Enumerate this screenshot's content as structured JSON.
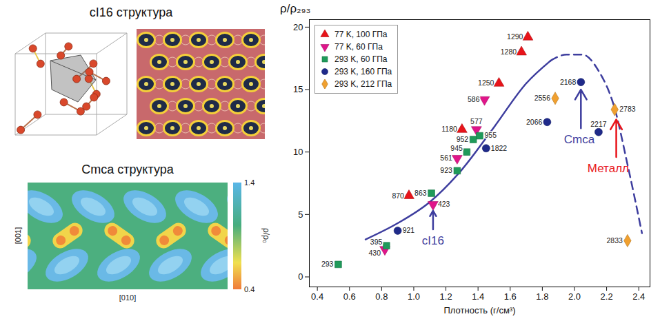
{
  "structures": [
    {
      "title": "cI16 структура"
    },
    {
      "title": "Cmca структура",
      "xlabel": "[010]",
      "ylabel": "[001]",
      "colorbar": {
        "label": "ρ/ρ₀",
        "range": [
          0.4,
          1.4
        ],
        "ticks": [
          1.4,
          0.4
        ]
      }
    }
  ],
  "chart_data": {
    "type": "scatter",
    "xlabel": "Плотность (г/см³)",
    "ylabel": "ρ/ρ₂₉₃",
    "xlim": [
      0.35,
      2.47
    ],
    "xticks": [
      0.4,
      0.6,
      0.8,
      {
        "value": 1,
        "label": "1.0"
      },
      1.2,
      1.4,
      1.6,
      1.8,
      {
        "value": 2,
        "label": "2.0"
      },
      2.2,
      2.4
    ],
    "ylim": [
      -0.8,
      20.6
    ],
    "yticks": [
      0,
      5,
      10,
      15,
      20
    ],
    "legend": "top-left",
    "series": [
      {
        "name": "77 K, 100 ГПа",
        "color": "#e8141a",
        "marker": "triangle",
        "x": [
          0.97,
          1.3,
          1.53,
          1.67,
          1.71
        ],
        "values": [
          6.5,
          11.8,
          15.5,
          18.0,
          19.2
        ],
        "point_labels": [
          870,
          1180,
          1250,
          1280,
          1290
        ]
      },
      {
        "name": "77 K, 60 ГПа",
        "color": "#e0158a",
        "marker": "triangle-down",
        "x": [
          0.82,
          1.12,
          1.27,
          1.39,
          1.44
        ],
        "values": [
          2.2,
          5.8,
          9.5,
          11.8,
          14.2
        ],
        "point_labels": [
          430,
          423,
          561,
          577,
          586
        ]
      },
      {
        "name": "293 K, 60 ГПа",
        "color": "#1f9a5a",
        "marker": "square",
        "x": [
          0.53,
          0.83,
          1.11,
          1.27,
          1.33,
          1.37,
          1.41
        ],
        "values": [
          1.0,
          2.5,
          6.7,
          8.5,
          10.0,
          11.0,
          11.3
        ],
        "point_labels": [
          293,
          395,
          863,
          923,
          945,
          952,
          955
        ]
      },
      {
        "name": "293 K, 160 ГПа",
        "color": "#1f2a8a",
        "marker": "circle",
        "x": [
          0.9,
          1.45,
          1.83,
          2.04,
          2.15
        ],
        "values": [
          3.7,
          10.3,
          12.4,
          15.6,
          11.6
        ],
        "point_labels": [
          921,
          1822,
          2066,
          2168,
          2217
        ]
      },
      {
        "name": "293 K, 212 ГПа",
        "color": "#f0a030",
        "marker": "diamond",
        "x": [
          1.88,
          2.25,
          2.33
        ],
        "values": [
          14.3,
          13.4,
          2.9
        ],
        "point_labels": [
          2556,
          2783,
          2833
        ]
      }
    ],
    "curves": [
      {
        "type": "line",
        "line_style": "solid",
        "color": "#3d3d9e",
        "x": [
          0.7,
          0.9,
          1.1,
          1.3,
          1.5,
          1.7,
          1.85
        ],
        "values": [
          3.0,
          4.3,
          6.0,
          8.6,
          12.0,
          15.5,
          17.3
        ]
      },
      {
        "type": "line",
        "line_style": "dashed",
        "color": "#3d3d9e",
        "x": [
          1.85,
          1.95,
          2.05,
          2.15,
          2.25,
          2.33,
          2.38,
          2.42
        ],
        "values": [
          17.3,
          17.8,
          17.8,
          16.5,
          13.5,
          9.0,
          6.0,
          3.5
        ]
      }
    ],
    "annotations": [
      {
        "text": "cI16",
        "color": "#3d3d9e",
        "x": 1.12,
        "y": 2.9,
        "arrow": [
          1.12,
          3.8,
          1.12,
          5.3
        ]
      },
      {
        "text": "Cmca",
        "color": "#3d3d9e",
        "x": 2.03,
        "y": 11.0,
        "arrow": [
          2.04,
          11.9,
          2.04,
          15.0
        ]
      },
      {
        "text": "Металл",
        "color": "#e8141a",
        "x": 2.21,
        "y": 8.7,
        "arrow": [
          2.26,
          9.6,
          2.26,
          12.6
        ]
      }
    ]
  }
}
